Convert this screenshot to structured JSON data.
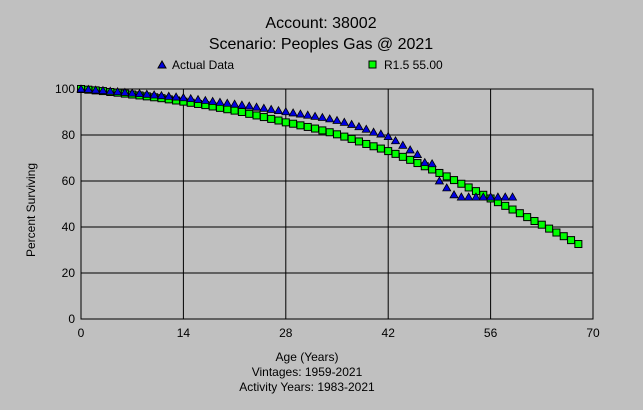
{
  "chart_data": {
    "type": "scatter",
    "title": "Account: 38002",
    "subtitle": "Scenario: Peoples Gas @ 2021",
    "xlabel": "Age (Years)",
    "ylabel": "Percent Surviving",
    "notes": [
      "Vintages: 1959-2021",
      "Activity Years: 1983-2021"
    ],
    "xlim": [
      0,
      70
    ],
    "ylim": [
      0,
      100
    ],
    "xticks": [
      0,
      14,
      28,
      42,
      56,
      70
    ],
    "yticks": [
      0,
      20,
      40,
      60,
      80,
      100
    ],
    "grid": true,
    "legend_placement": "top",
    "colors": {
      "background": "#c0c0c0",
      "actual": "#0000e0",
      "fit": "#00ff00"
    },
    "series": [
      {
        "name": "Actual Data",
        "marker": "triangle",
        "x": [
          0,
          1,
          2,
          3,
          4,
          5,
          6,
          7,
          8,
          9,
          10,
          11,
          12,
          13,
          14,
          15,
          16,
          17,
          18,
          19,
          20,
          21,
          22,
          23,
          24,
          25,
          26,
          27,
          28,
          29,
          30,
          31,
          32,
          33,
          34,
          35,
          36,
          37,
          38,
          39,
          40,
          41,
          42,
          43,
          44,
          45,
          46,
          47,
          48,
          49,
          50,
          51,
          52,
          53,
          54,
          55,
          56,
          57,
          58,
          59
        ],
        "y": [
          100,
          99.8,
          99.5,
          99.3,
          99,
          98.8,
          98.5,
          98.2,
          98,
          97.7,
          97.4,
          97.1,
          96.8,
          96.5,
          96.2,
          95.8,
          95.4,
          95,
          94.6,
          94.2,
          93.8,
          93.4,
          93,
          92.6,
          92.1,
          91.6,
          91.1,
          90.6,
          90.1,
          89.6,
          89.1,
          88.6,
          88.1,
          87.6,
          87,
          86.3,
          85.5,
          84.6,
          83.6,
          82.5,
          81.2,
          80.4,
          79.3,
          77.5,
          75.5,
          73.5,
          71.5,
          68,
          67.5,
          60,
          57,
          54,
          53,
          53,
          53,
          53,
          53,
          53,
          53,
          53
        ]
      },
      {
        "name": "R1.5 55.00",
        "marker": "square",
        "x": [
          0,
          1,
          2,
          3,
          4,
          5,
          6,
          7,
          8,
          9,
          10,
          11,
          12,
          13,
          14,
          15,
          16,
          17,
          18,
          19,
          20,
          21,
          22,
          23,
          24,
          25,
          26,
          27,
          28,
          29,
          30,
          31,
          32,
          33,
          34,
          35,
          36,
          37,
          38,
          39,
          40,
          41,
          42,
          43,
          44,
          45,
          46,
          47,
          48,
          49,
          50,
          51,
          52,
          53,
          54,
          55,
          56,
          57,
          58,
          59,
          60,
          61,
          62,
          63,
          64,
          65,
          66,
          67,
          68
        ],
        "y": [
          100,
          99.7,
          99.4,
          99.1,
          98.7,
          98.4,
          98,
          97.6,
          97.2,
          96.8,
          96.4,
          96,
          95.5,
          95,
          94.5,
          94,
          93.5,
          93,
          92.4,
          91.8,
          91.2,
          90.6,
          90,
          89.2,
          88.5,
          87.8,
          87,
          86.3,
          85.5,
          84.9,
          84.2,
          83.5,
          82.8,
          82,
          81.2,
          80.3,
          79.3,
          78.3,
          77.2,
          76.1,
          75.1,
          74.1,
          73,
          71.8,
          70.5,
          69.2,
          67.8,
          66.4,
          65,
          63.5,
          62,
          60.4,
          58.8,
          57.2,
          55.6,
          54,
          52.4,
          50.8,
          49.2,
          47.6,
          46,
          44.3,
          42.6,
          41,
          39.3,
          37.6,
          36,
          34.3,
          32.6
        ]
      }
    ]
  }
}
